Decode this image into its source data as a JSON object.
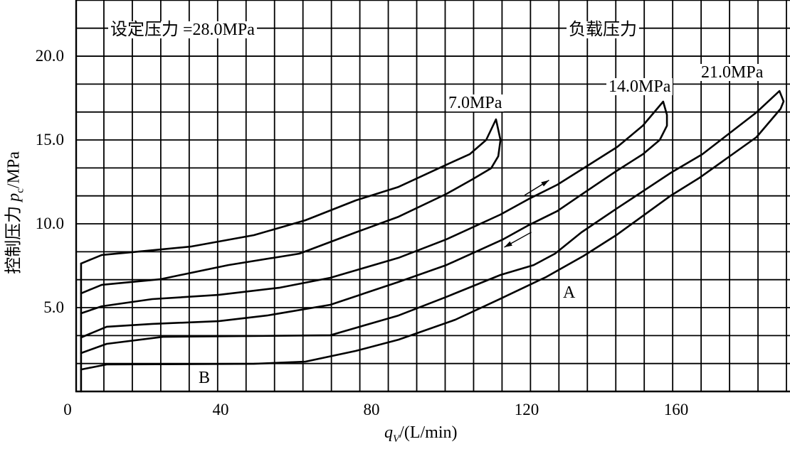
{
  "chart_data": {
    "type": "line",
    "title": "",
    "xlabel": {
      "symbol": "q",
      "sub": "V",
      "unit": "/(L/min)"
    },
    "ylabel": {
      "prefix": "控制压力 ",
      "symbol": "p",
      "sub": "c",
      "unit": "/MPa"
    },
    "xlim": [
      0,
      190
    ],
    "ylim": [
      0,
      23.3
    ],
    "x_ticks": [
      {
        "value": 0,
        "label": "0"
      },
      {
        "value": 40,
        "label": "40"
      },
      {
        "value": 80,
        "label": "80"
      },
      {
        "value": 120,
        "label": "120"
      },
      {
        "value": 160,
        "label": "160"
      }
    ],
    "y_ticks": [
      {
        "value": 5,
        "label": "5.0"
      },
      {
        "value": 10,
        "label": "10.0"
      },
      {
        "value": 15,
        "label": "15.0"
      },
      {
        "value": 20,
        "label": "20.0"
      }
    ],
    "grid": true,
    "annotations": {
      "set_pressure": "设定压力 =28.0MPa",
      "load_pressure": "负载压力",
      "point_a": "A",
      "point_b": "B"
    },
    "series": [
      {
        "name": "start",
        "points": [
          [
            3.2,
            0
          ],
          [
            3.2,
            7.63
          ]
        ]
      },
      {
        "name": "7.0MPa",
        "label": "7.0MPa",
        "points": [
          [
            3.2,
            7.63
          ],
          [
            8.7,
            8.14
          ],
          [
            16.8,
            8.31
          ],
          [
            32.3,
            8.64
          ],
          [
            49.1,
            9.32
          ],
          [
            62.8,
            10.21
          ],
          [
            76.2,
            11.4
          ],
          [
            87.5,
            12.2
          ],
          [
            100.2,
            13.52
          ],
          [
            106.4,
            14.15
          ],
          [
            110.8,
            15.0
          ],
          [
            113.4,
            16.23
          ],
          [
            114.6,
            15.0
          ],
          [
            114.0,
            14.03
          ],
          [
            112.1,
            13.31
          ],
          [
            107.0,
            12.63
          ],
          [
            100.2,
            11.78
          ],
          [
            87.5,
            10.42
          ],
          [
            76.2,
            9.49
          ],
          [
            61.2,
            8.22
          ],
          [
            42.3,
            7.54
          ],
          [
            24.2,
            6.69
          ],
          [
            8.7,
            6.36
          ],
          [
            3.2,
            5.85
          ]
        ]
      },
      {
        "name": "14.0MPa",
        "label": "14.0MPa",
        "points": [
          [
            3.2,
            4.66
          ],
          [
            8.7,
            5.08
          ],
          [
            22.1,
            5.51
          ],
          [
            39.7,
            5.76
          ],
          [
            56.0,
            6.19
          ],
          [
            69.4,
            6.78
          ],
          [
            87.5,
            7.97
          ],
          [
            100.2,
            9.07
          ],
          [
            114.6,
            10.55
          ],
          [
            122.1,
            11.48
          ],
          [
            129.7,
            12.33
          ],
          [
            137.2,
            13.39
          ],
          [
            145.6,
            14.58
          ],
          [
            152.4,
            15.85
          ],
          [
            157.8,
            17.29
          ],
          [
            158.8,
            16.5
          ],
          [
            158.8,
            15.85
          ],
          [
            156.9,
            15.0
          ],
          [
            152.4,
            14.15
          ],
          [
            145.6,
            13.18
          ],
          [
            137.2,
            11.91
          ],
          [
            129.7,
            10.76
          ],
          [
            122.1,
            9.92
          ],
          [
            115.3,
            9.07
          ],
          [
            100.2,
            7.54
          ],
          [
            87.5,
            6.53
          ],
          [
            69.4,
            5.17
          ],
          [
            52.6,
            4.53
          ],
          [
            39.7,
            4.19
          ],
          [
            22.1,
            4.03
          ],
          [
            10.0,
            3.86
          ],
          [
            3.2,
            3.22
          ]
        ]
      },
      {
        "name": "21.0MPa",
        "label": "21.0MPa",
        "points": [
          [
            3.2,
            2.29
          ],
          [
            10.0,
            2.84
          ],
          [
            25.0,
            3.26
          ],
          [
            69.4,
            3.35
          ],
          [
            87.5,
            4.53
          ],
          [
            100.2,
            5.64
          ],
          [
            114.6,
            6.95
          ],
          [
            123.4,
            7.54
          ],
          [
            129.1,
            8.22
          ],
          [
            136.1,
            9.49
          ],
          [
            145.6,
            10.93
          ],
          [
            159.9,
            13.05
          ],
          [
            168.2,
            14.15
          ],
          [
            182.6,
            16.65
          ],
          [
            188.7,
            17.92
          ],
          [
            189.8,
            17.3
          ],
          [
            189.0,
            16.86
          ],
          [
            182.6,
            15.17
          ],
          [
            167.5,
            12.75
          ],
          [
            159.9,
            11.69
          ],
          [
            145.6,
            9.36
          ],
          [
            136.7,
            8.09
          ],
          [
            126.7,
            6.82
          ],
          [
            114.0,
            5.47
          ],
          [
            102.6,
            4.28
          ],
          [
            87.5,
            3.09
          ],
          [
            76.2,
            2.42
          ],
          [
            62.8,
            1.78
          ],
          [
            49.1,
            1.65
          ],
          [
            10.0,
            1.61
          ],
          [
            3.2,
            1.31
          ]
        ]
      }
    ],
    "arrows": [
      {
        "name": "increasing",
        "from": [
          121.0,
          11.7
        ],
        "to": [
          127.5,
          12.6
        ]
      },
      {
        "name": "decreasing",
        "from": [
          122.8,
          9.5
        ],
        "to": [
          115.6,
          8.6
        ]
      }
    ]
  }
}
